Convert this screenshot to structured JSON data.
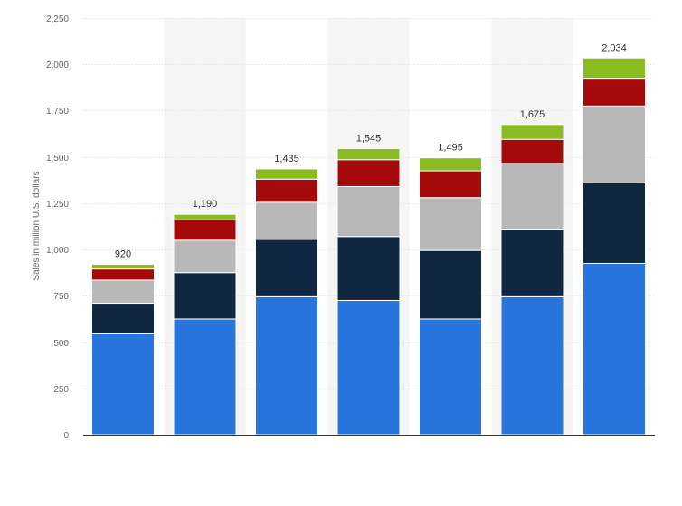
{
  "chart_data": {
    "type": "bar",
    "stacked": true,
    "ylabel": "Sales in million U.S. dollars",
    "ylim": [
      0,
      2250
    ],
    "yticks": [
      0,
      250,
      500,
      750,
      1000,
      1250,
      1500,
      1750,
      2000,
      2250
    ],
    "ytick_labels": [
      "0",
      "250",
      "500",
      "750",
      "1,000",
      "1,250",
      "1,500",
      "1,750",
      "2,000",
      "2,250"
    ],
    "grid": true,
    "legend": "none",
    "category_count": 7,
    "totals": [
      920,
      1190,
      1435,
      1545,
      1495,
      1675,
      2034
    ],
    "total_labels": [
      "920",
      "1,190",
      "1,435",
      "1,545",
      "1,495",
      "1,675",
      "2,034"
    ],
    "series": [
      {
        "color": "#2876dd",
        "values": [
          545,
          625,
          745,
          725,
          625,
          745,
          925
        ]
      },
      {
        "color": "#0f2740",
        "values": [
          165,
          250,
          310,
          345,
          370,
          365,
          435
        ]
      },
      {
        "color": "#b8b8b8",
        "values": [
          125,
          175,
          200,
          270,
          285,
          355,
          415
        ]
      },
      {
        "color": "#a50a0a",
        "values": [
          60,
          110,
          125,
          145,
          145,
          130,
          150
        ]
      },
      {
        "color": "#8abb21",
        "values": [
          25,
          30,
          55,
          60,
          70,
          80,
          109
        ]
      }
    ],
    "background_band_color": "#f5f5f5",
    "grid_color": "#dddddd"
  }
}
